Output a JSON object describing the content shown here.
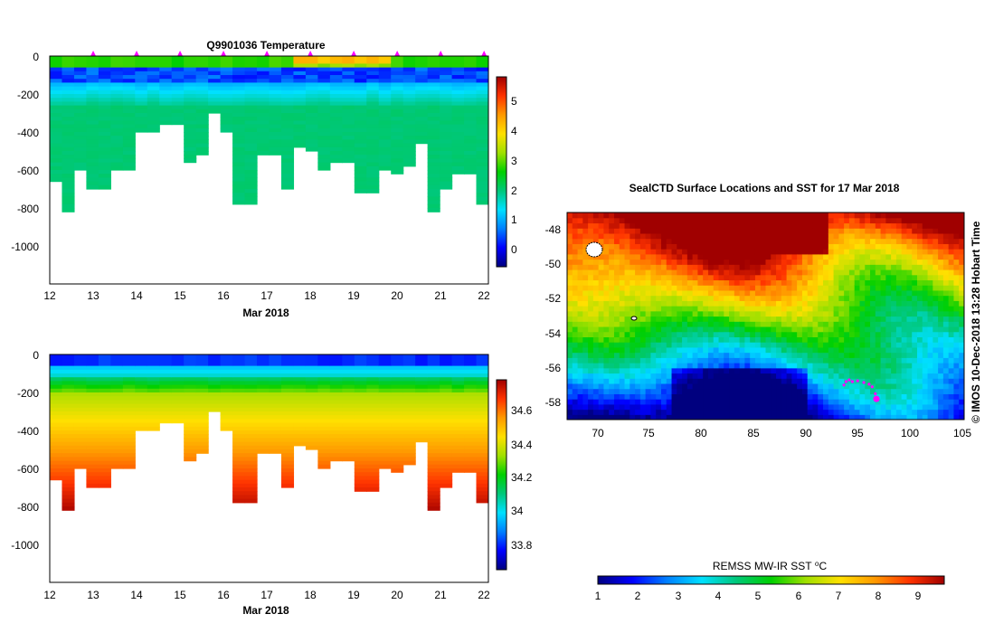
{
  "figure": {
    "credit": "© IMOS 10-Dec-2018 13:28 Hobart Time"
  },
  "colors": {
    "stops": [
      "#00007f",
      "#0000ff",
      "#0080ff",
      "#00e0ff",
      "#00c87a",
      "#00d000",
      "#a0e000",
      "#ffe000",
      "#ff9900",
      "#ff3300",
      "#a00000"
    ],
    "profile_marker": "#ff00ff"
  },
  "chart_data": [
    {
      "id": "temperature_section",
      "type": "heatmap",
      "title": "Q9901036  Temperature",
      "xlabel": "Mar 2018",
      "ylabel": "",
      "xlim": [
        12,
        22.1
      ],
      "ylim": [
        -1200,
        0
      ],
      "xticks": [
        "12",
        "13",
        "14",
        "15",
        "16",
        "17",
        "18",
        "19",
        "20",
        "21",
        "22"
      ],
      "yticks": [
        "0",
        "-200",
        "-400",
        "-600",
        "-800",
        "-1000"
      ],
      "profile_times": [
        13.0,
        14.0,
        15.0,
        16.0,
        17.0,
        18.0,
        19.0,
        20.0,
        21.0,
        22.0
      ],
      "profile_max_depth": [
        650,
        810,
        600,
        700,
        700,
        600,
        600,
        390,
        390,
        360,
        360,
        560,
        520,
        300,
        400,
        780,
        780,
        520,
        520,
        700,
        470,
        500,
        590,
        550,
        550,
        710,
        710,
        600,
        610,
        580,
        460,
        810,
        700,
        610,
        610,
        780
      ],
      "colorbar": {
        "label": "",
        "range": [
          -0.6,
          5.8
        ],
        "ticks": [
          "0",
          "1",
          "2",
          "3",
          "4",
          "5"
        ]
      }
    },
    {
      "id": "salinity_section",
      "type": "heatmap",
      "title": "",
      "xlabel": "Mar 2018",
      "ylabel": "",
      "xlim": [
        12,
        22.1
      ],
      "ylim": [
        -1200,
        0
      ],
      "xticks": [
        "12",
        "13",
        "14",
        "15",
        "16",
        "17",
        "18",
        "19",
        "20",
        "21",
        "22"
      ],
      "yticks": [
        "0",
        "-200",
        "-400",
        "-600",
        "-800",
        "-1000"
      ],
      "profile_max_depth": [
        650,
        810,
        600,
        700,
        700,
        600,
        600,
        390,
        390,
        360,
        360,
        560,
        520,
        300,
        400,
        780,
        780,
        520,
        520,
        700,
        470,
        500,
        590,
        550,
        550,
        710,
        710,
        600,
        610,
        580,
        460,
        810,
        700,
        610,
        610,
        780
      ],
      "colorbar": {
        "label": "",
        "range": [
          33.65,
          34.8
        ],
        "ticks": [
          "33.8",
          "34",
          "34.2",
          "34.4",
          "34.6"
        ]
      }
    },
    {
      "id": "sst_map",
      "type": "heatmap",
      "title": "SealCTD Surface Locations and SST for 17 Mar 2018",
      "xlabel": "",
      "ylabel": "",
      "xlim": [
        67,
        105
      ],
      "ylim": [
        -59,
        -47
      ],
      "xticks": [
        "70",
        "75",
        "80",
        "85",
        "90",
        "95",
        "100",
        "105"
      ],
      "yticks": [
        "-48",
        "-50",
        "-52",
        "-54",
        "-56",
        "-58"
      ],
      "track": [
        [
          93.5,
          -57.0
        ],
        [
          93.7,
          -56.8
        ],
        [
          94.0,
          -56.7
        ],
        [
          94.3,
          -56.8
        ],
        [
          94.8,
          -56.75
        ],
        [
          95.4,
          -56.85
        ],
        [
          95.9,
          -56.95
        ],
        [
          96.2,
          -57.1
        ],
        [
          96.5,
          -57.5
        ],
        [
          96.6,
          -57.75
        ]
      ],
      "track_end": [
        96.6,
        -57.8
      ],
      "colorbar": {
        "label": "REMSS MW-IR SST ⁰C",
        "range": [
          0.6,
          9.7
        ],
        "ticks": [
          "1",
          "2",
          "3",
          "4",
          "5",
          "6",
          "7",
          "8",
          "9"
        ]
      }
    }
  ]
}
